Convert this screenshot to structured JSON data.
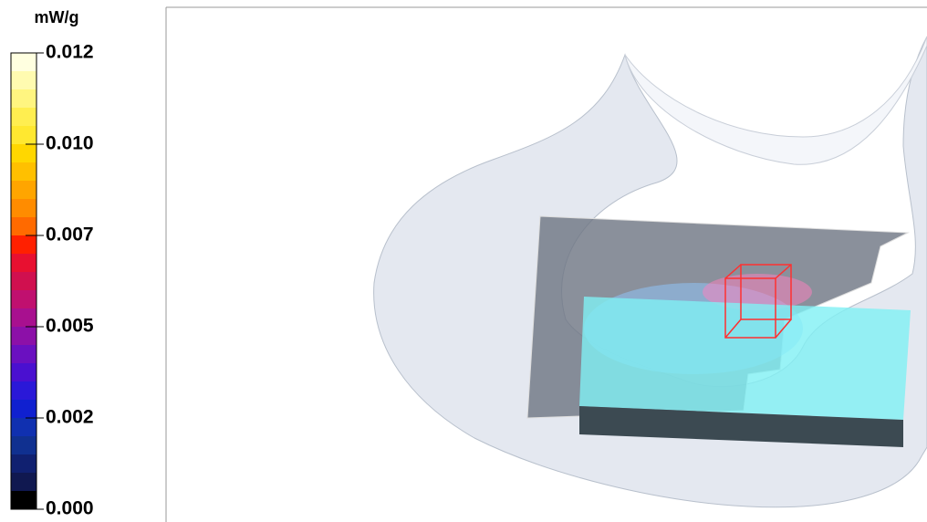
{
  "legend": {
    "unit": "mW/g",
    "labels": [
      "0.012",
      "0.010",
      "0.007",
      "0.005",
      "0.002",
      "0.000"
    ]
  }
}
